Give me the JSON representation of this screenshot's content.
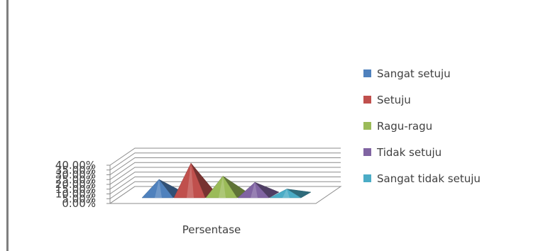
{
  "chart_data": {
    "type": "bar",
    "bar_shape": "3d-pyramid",
    "categories": [
      "Persentase"
    ],
    "series": [
      {
        "name": "Sangat setuju",
        "values": [
          18.5
        ],
        "color": "#4f81bd"
      },
      {
        "name": "Setuju",
        "values": [
          35.5
        ],
        "color": "#c0504d"
      },
      {
        "name": "Ragu-ragu",
        "values": [
          22.0
        ],
        "color": "#9bbb59"
      },
      {
        "name": "Tidak setuju",
        "values": [
          15.5
        ],
        "color": "#8064a2"
      },
      {
        "name": "Sangat tidak setuju",
        "values": [
          8.5
        ],
        "color": "#4bacc6"
      }
    ],
    "yticks": [
      "0.00%",
      "5.00%",
      "10.00%",
      "15.00%",
      "20.00%",
      "25.00%",
      "30.00%",
      "35.00%",
      "40.00%"
    ],
    "ylim": [
      0,
      40
    ],
    "grid": true,
    "legend_position": "right",
    "title": "",
    "xlabel": "",
    "ylabel": ""
  }
}
